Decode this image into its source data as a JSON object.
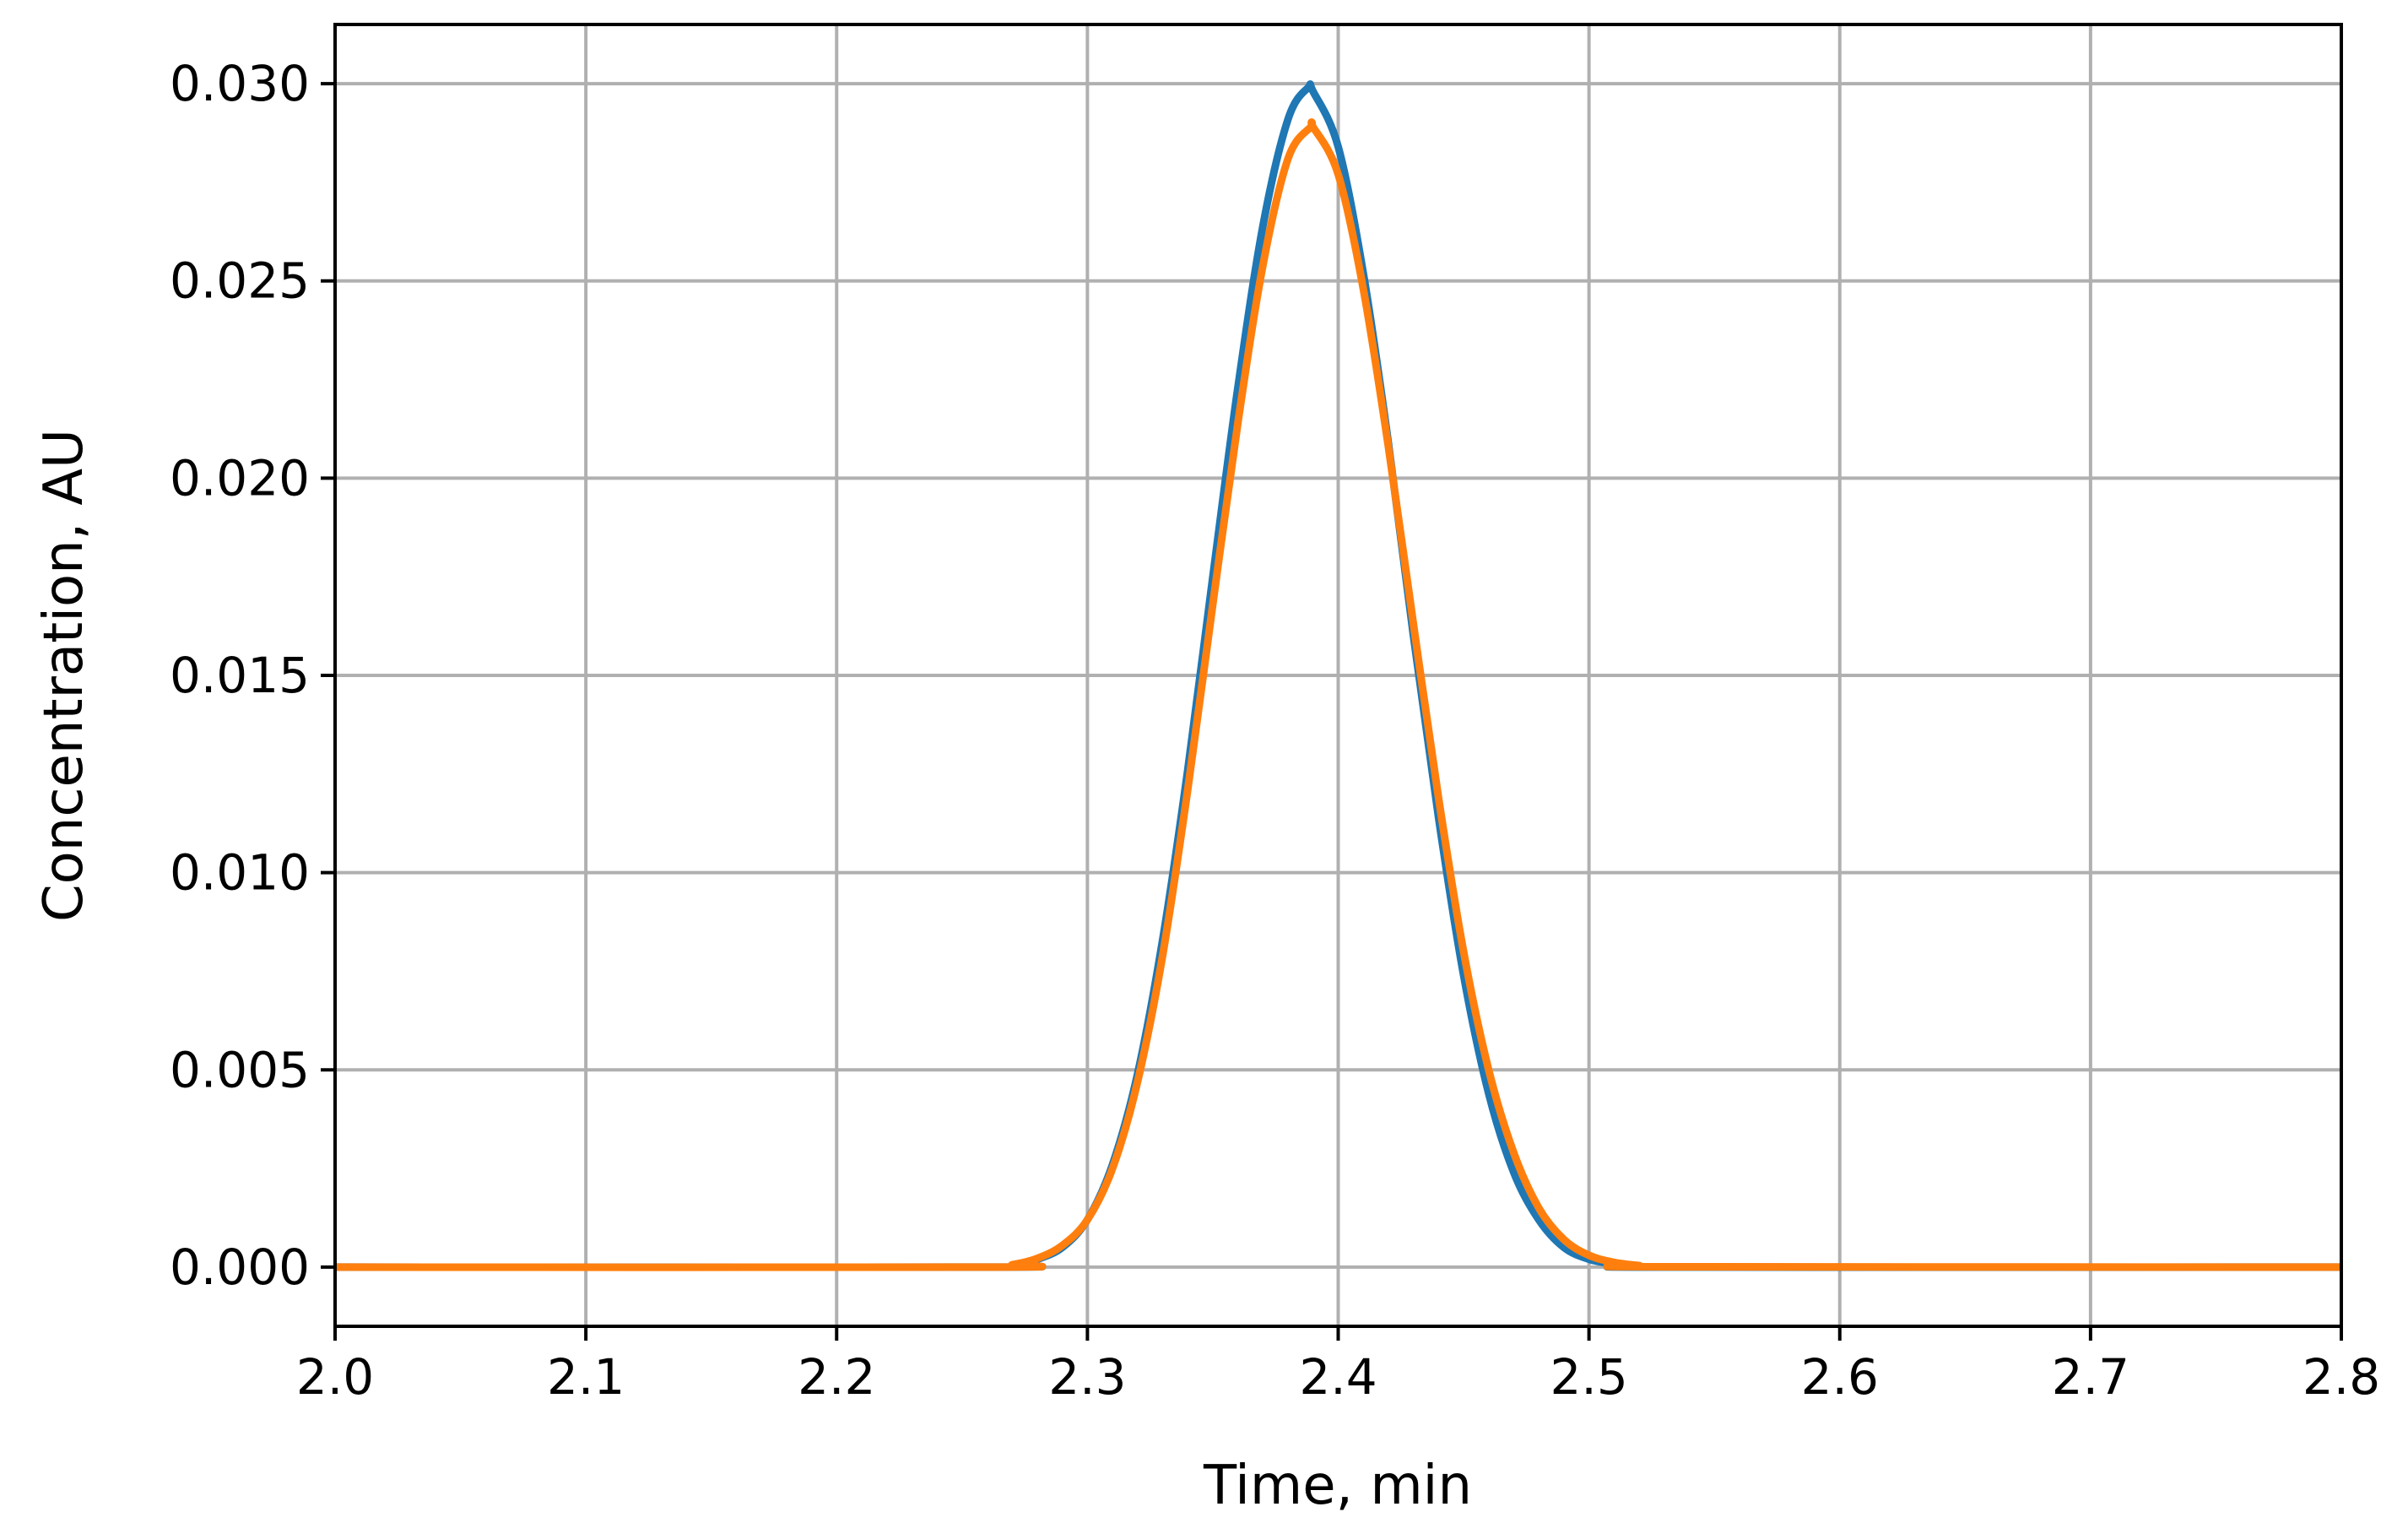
{
  "chart_data": {
    "type": "line",
    "xlabel": "Time, min",
    "ylabel": "Concentration, AU",
    "xlim": [
      2.0,
      2.8
    ],
    "ylim": [
      -0.0015,
      0.0315
    ],
    "xticks": [
      "2.0",
      "2.1",
      "2.2",
      "2.3",
      "2.4",
      "2.5",
      "2.6",
      "2.7",
      "2.8"
    ],
    "yticks": [
      "0.000",
      "0.005",
      "0.010",
      "0.015",
      "0.020",
      "0.025",
      "0.030"
    ],
    "grid": true,
    "series": [
      {
        "color": "#1f77b4",
        "x": [
          2.0,
          2.26,
          2.27,
          2.28,
          2.29,
          2.3,
          2.31,
          2.32,
          2.33,
          2.34,
          2.35,
          2.36,
          2.37,
          2.38,
          2.388,
          2.39,
          2.4,
          2.41,
          2.42,
          2.43,
          2.44,
          2.45,
          2.46,
          2.47,
          2.48,
          2.49,
          2.5,
          2.51,
          2.52,
          2.53,
          2.8
        ],
        "y": [
          0.0,
          0.0,
          5e-05,
          0.0002,
          0.0005,
          0.0012,
          0.0026,
          0.0049,
          0.0083,
          0.0126,
          0.0175,
          0.0223,
          0.0264,
          0.0291,
          0.0299,
          0.0298,
          0.0284,
          0.0252,
          0.0209,
          0.016,
          0.0114,
          0.0074,
          0.0044,
          0.0024,
          0.0012,
          0.0005,
          0.0002,
          8e-05,
          3e-05,
          0.0,
          0.0
        ]
      },
      {
        "color": "#ff7f0e",
        "x": [
          2.0,
          2.26,
          2.27,
          2.28,
          2.29,
          2.3,
          2.31,
          2.32,
          2.33,
          2.34,
          2.35,
          2.36,
          2.37,
          2.38,
          2.389,
          2.39,
          2.4,
          2.41,
          2.42,
          2.43,
          2.44,
          2.45,
          2.46,
          2.47,
          2.48,
          2.49,
          2.5,
          2.51,
          2.52,
          2.53,
          2.8
        ],
        "y": [
          0.0,
          0.0,
          6e-05,
          0.00022,
          0.00055,
          0.0012,
          0.0025,
          0.0047,
          0.0079,
          0.0121,
          0.0168,
          0.0214,
          0.0254,
          0.0281,
          0.0289,
          0.0289,
          0.0277,
          0.0248,
          0.0208,
          0.0163,
          0.0119,
          0.008,
          0.005,
          0.0029,
          0.0015,
          0.0007,
          0.0003,
          0.00012,
          4e-05,
          1e-05,
          0.0
        ]
      }
    ]
  }
}
